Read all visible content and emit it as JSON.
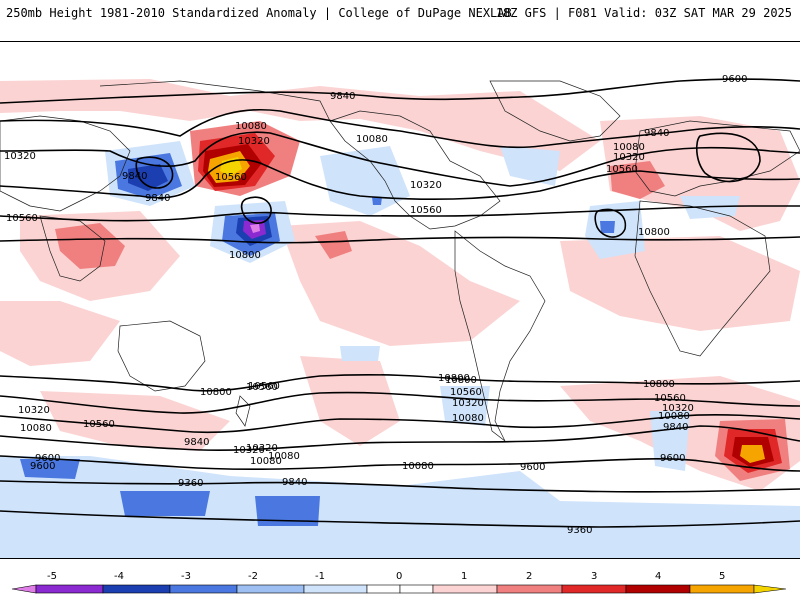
{
  "header": {
    "title": "250mb Height 1981-2010 Standardized Anomaly | College of DuPage NEXLAB",
    "run_info": "18Z GFS | F081 Valid: 03Z SAT MAR 29 2025"
  },
  "colors": {
    "neg5": "#e07ee8",
    "neg4": "#8a2ad0",
    "neg3": "#1b3fb0",
    "neg2": "#4a78e0",
    "neg1": "#cfe3fb",
    "pos1": "#fbd3d3",
    "pos2": "#f08080",
    "pos3": "#e02828",
    "pos4": "#b00000",
    "pos5": "#f6a500",
    "pos6": "#f3d400",
    "contour": "#000000",
    "coast": "#202020"
  },
  "colorbar": {
    "ticks": [
      "-5",
      "-4",
      "-3",
      "-2",
      "-1",
      "0",
      "1",
      "2",
      "3",
      "4",
      "5"
    ]
  },
  "contour_labels": [
    "9840",
    "10080",
    "10320",
    "10560",
    "10080",
    "9600",
    "9840",
    "10080",
    "10320",
    "10560",
    "10800",
    "10320",
    "10560",
    "10800",
    "10320",
    "10560",
    "9840",
    "10560",
    "10080",
    "10320",
    "10800",
    "10560",
    "10320",
    "10080",
    "9840",
    "10080",
    "9600",
    "9360",
    "10800",
    "10560",
    "10320",
    "10080",
    "9840",
    "9600",
    "10800",
    "10560",
    "10320",
    "10080",
    "9840",
    "9600",
    "9840",
    "10080",
    "9600",
    "9360",
    "10560",
    "10320",
    "10800"
  ]
}
